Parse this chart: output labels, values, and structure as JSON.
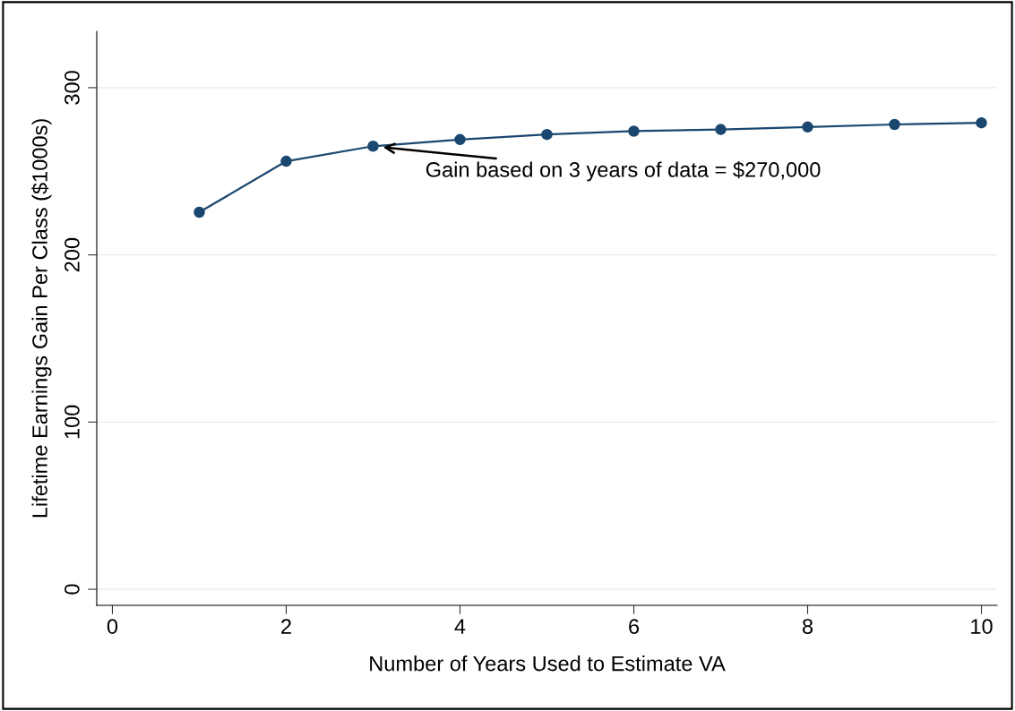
{
  "chart_data": {
    "type": "line",
    "xlabel": "Number of Years Used to Estimate VA",
    "ylabel": "Lifetime Earnings Gain Per Class ($1000s)",
    "x": [
      1,
      2,
      3,
      4,
      5,
      6,
      7,
      8,
      9,
      10
    ],
    "series": [
      {
        "color": "#1a476f",
        "values": [
          225.5,
          256,
          265,
          269,
          272,
          274,
          275,
          276.5,
          278,
          279
        ]
      }
    ],
    "xlim": [
      -0.18,
      10.18
    ],
    "ylim": [
      -9.6,
      333.7
    ],
    "xticks": [
      0,
      2,
      4,
      6,
      8,
      10
    ],
    "yticks": [
      0,
      100,
      200,
      300
    ],
    "grid": "y",
    "marker": "circle",
    "line_style": "solid",
    "annotations": [
      {
        "text": "Gain based on 3 years of data = $270,000",
        "x": 3,
        "y": 265
      }
    ]
  }
}
